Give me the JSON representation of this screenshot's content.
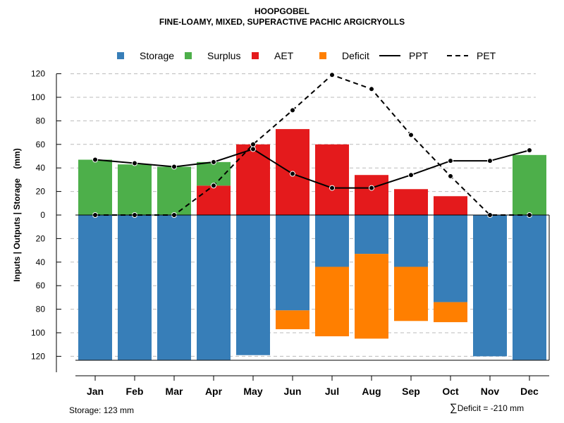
{
  "chart_data": {
    "type": "bar",
    "title": "HOOPGOBEL",
    "subtitle": "FINE-LOAMY, MIXED, SUPERACTIVE PACHIC ARGICRYOLLS",
    "ylabel": "Inputs | Outputs | Storage    (mm)",
    "xlabel": "",
    "ylim": [
      -125,
      125
    ],
    "yticks": [
      120,
      100,
      80,
      60,
      40,
      20,
      0,
      20,
      40,
      60,
      80,
      100,
      120
    ],
    "ytick_values": [
      120,
      100,
      80,
      60,
      40,
      20,
      0,
      -20,
      -40,
      -60,
      -80,
      -100,
      -120
    ],
    "categories": [
      "Jan",
      "Feb",
      "Mar",
      "Apr",
      "May",
      "Jun",
      "Jul",
      "Aug",
      "Sep",
      "Oct",
      "Nov",
      "Dec"
    ],
    "series": [
      {
        "name": "Storage",
        "kind": "bar-below",
        "color": "#377EB8",
        "values": [
          123,
          123,
          123,
          123,
          119,
          81,
          44,
          33,
          44,
          74,
          120,
          123
        ]
      },
      {
        "name": "Surplus",
        "kind": "bar-above-stack",
        "color": "#4DAF4A",
        "values": [
          47,
          43,
          41,
          20,
          0,
          0,
          0,
          0,
          0,
          0,
          0,
          51
        ]
      },
      {
        "name": "AET",
        "kind": "bar-above",
        "color": "#E41A1C",
        "values": [
          0,
          0,
          0,
          25,
          60,
          73,
          60,
          34,
          22,
          16,
          0,
          0
        ]
      },
      {
        "name": "Deficit",
        "kind": "bar-below-stack",
        "color": "#FF7F00",
        "values": [
          0,
          0,
          0,
          0,
          0,
          16,
          59,
          72,
          46,
          17,
          0,
          0
        ]
      },
      {
        "name": "PPT",
        "kind": "line-solid",
        "color": "#000000",
        "values": [
          47,
          44,
          41,
          45,
          56,
          35,
          23,
          23,
          34,
          46,
          46,
          55
        ]
      },
      {
        "name": "PET",
        "kind": "line-dashed",
        "color": "#000000",
        "values": [
          0,
          0,
          0,
          25,
          60,
          89,
          119,
          107,
          68,
          33,
          0,
          0
        ]
      }
    ],
    "legend": {
      "position": "top",
      "labels": [
        "Storage",
        "Surplus",
        "AET",
        "Deficit",
        "PPT",
        "PET"
      ]
    },
    "grid": true,
    "footer_left": "Storage: 123 mm",
    "footer_right": "Deficit = -210 mm",
    "footer_right_symbol": "∑"
  }
}
